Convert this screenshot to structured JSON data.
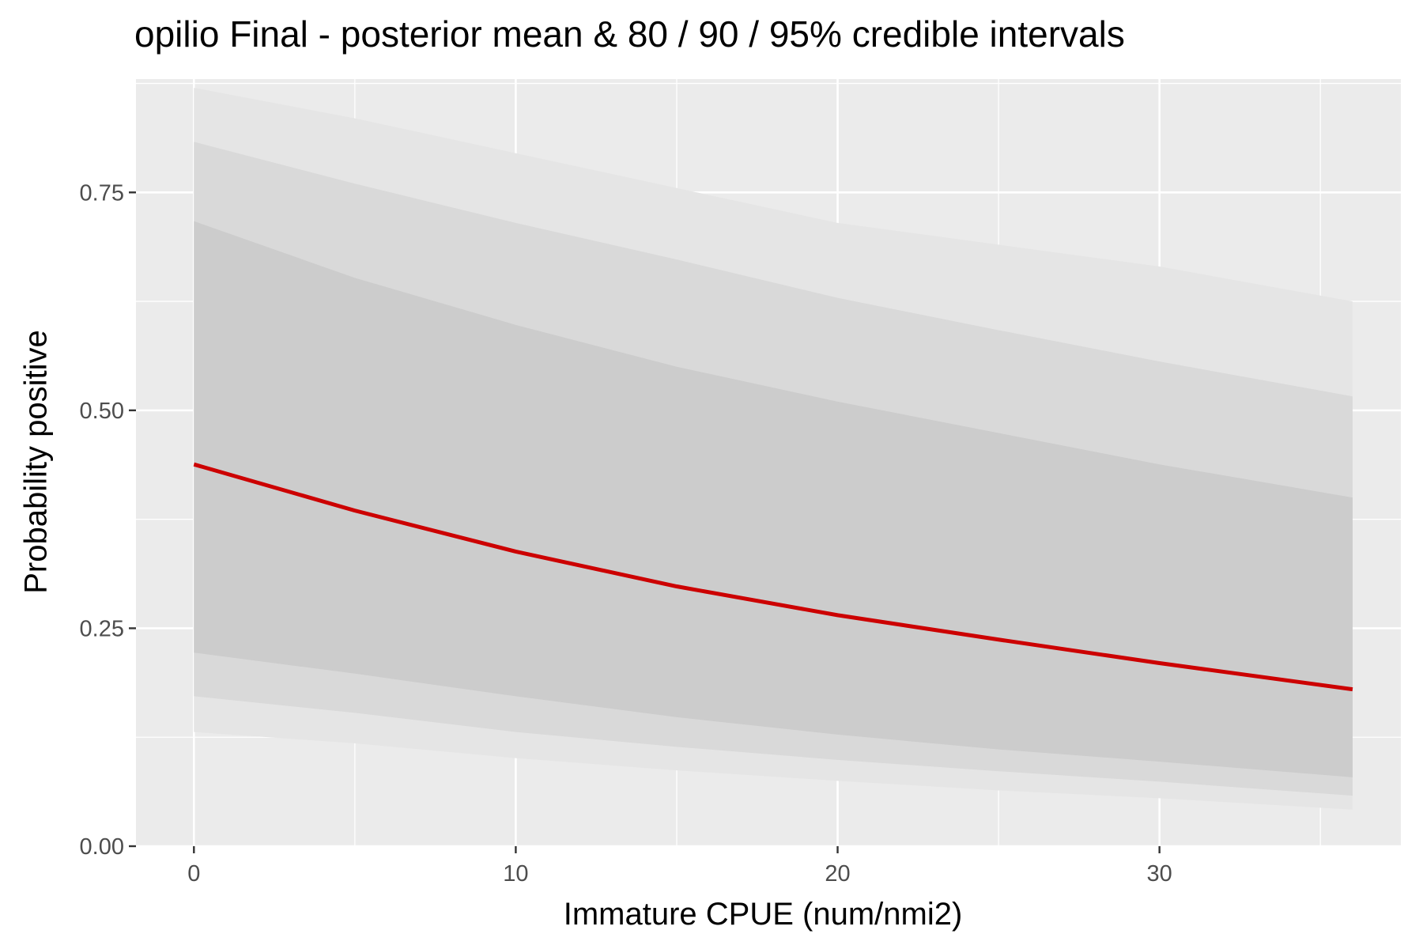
{
  "chart_data": {
    "type": "area",
    "title": "opilio Final - posterior mean & 80 / 90 / 95% credible intervals",
    "xlabel": "Immature CPUE (num/nmi2)",
    "ylabel": "Probability positive",
    "xlim": [
      -1.8,
      37.5
    ],
    "ylim": [
      0,
      0.88
    ],
    "x_ticks": [
      0,
      10,
      20,
      30
    ],
    "x_tick_labels": [
      "0",
      "10",
      "20",
      "30"
    ],
    "y_ticks": [
      0,
      0.25,
      0.5,
      0.75
    ],
    "y_tick_labels": [
      "0.00",
      "0.25",
      "0.50",
      "0.75"
    ],
    "grid": true,
    "x": [
      0,
      5,
      10,
      15,
      20,
      25,
      30,
      36
    ],
    "mean": [
      0.438,
      0.385,
      0.338,
      0.298,
      0.265,
      0.237,
      0.21,
      0.18
    ],
    "bands": [
      {
        "level": "95%",
        "lower": [
          0.131,
          0.118,
          0.101,
          0.087,
          0.075,
          0.064,
          0.055,
          0.042
        ],
        "upper": [
          0.87,
          0.835,
          0.795,
          0.755,
          0.715,
          0.69,
          0.665,
          0.625
        ]
      },
      {
        "level": "90%",
        "lower": [
          0.172,
          0.153,
          0.131,
          0.114,
          0.099,
          0.086,
          0.074,
          0.058
        ],
        "upper": [
          0.808,
          0.76,
          0.715,
          0.673,
          0.629,
          0.592,
          0.556,
          0.516
        ]
      },
      {
        "level": "80%",
        "lower": [
          0.222,
          0.198,
          0.172,
          0.148,
          0.128,
          0.111,
          0.097,
          0.079
        ],
        "upper": [
          0.717,
          0.652,
          0.598,
          0.55,
          0.51,
          0.474,
          0.438,
          0.4
        ]
      }
    ],
    "colors": {
      "panel": "#ebebeb",
      "grid": "#ffffff",
      "band_95": "#e5e5e5",
      "band_90": "#d9d9d9",
      "band_80": "#cccccc",
      "mean_line": "#cc0000",
      "tick_text": "#4d4d4d"
    }
  }
}
